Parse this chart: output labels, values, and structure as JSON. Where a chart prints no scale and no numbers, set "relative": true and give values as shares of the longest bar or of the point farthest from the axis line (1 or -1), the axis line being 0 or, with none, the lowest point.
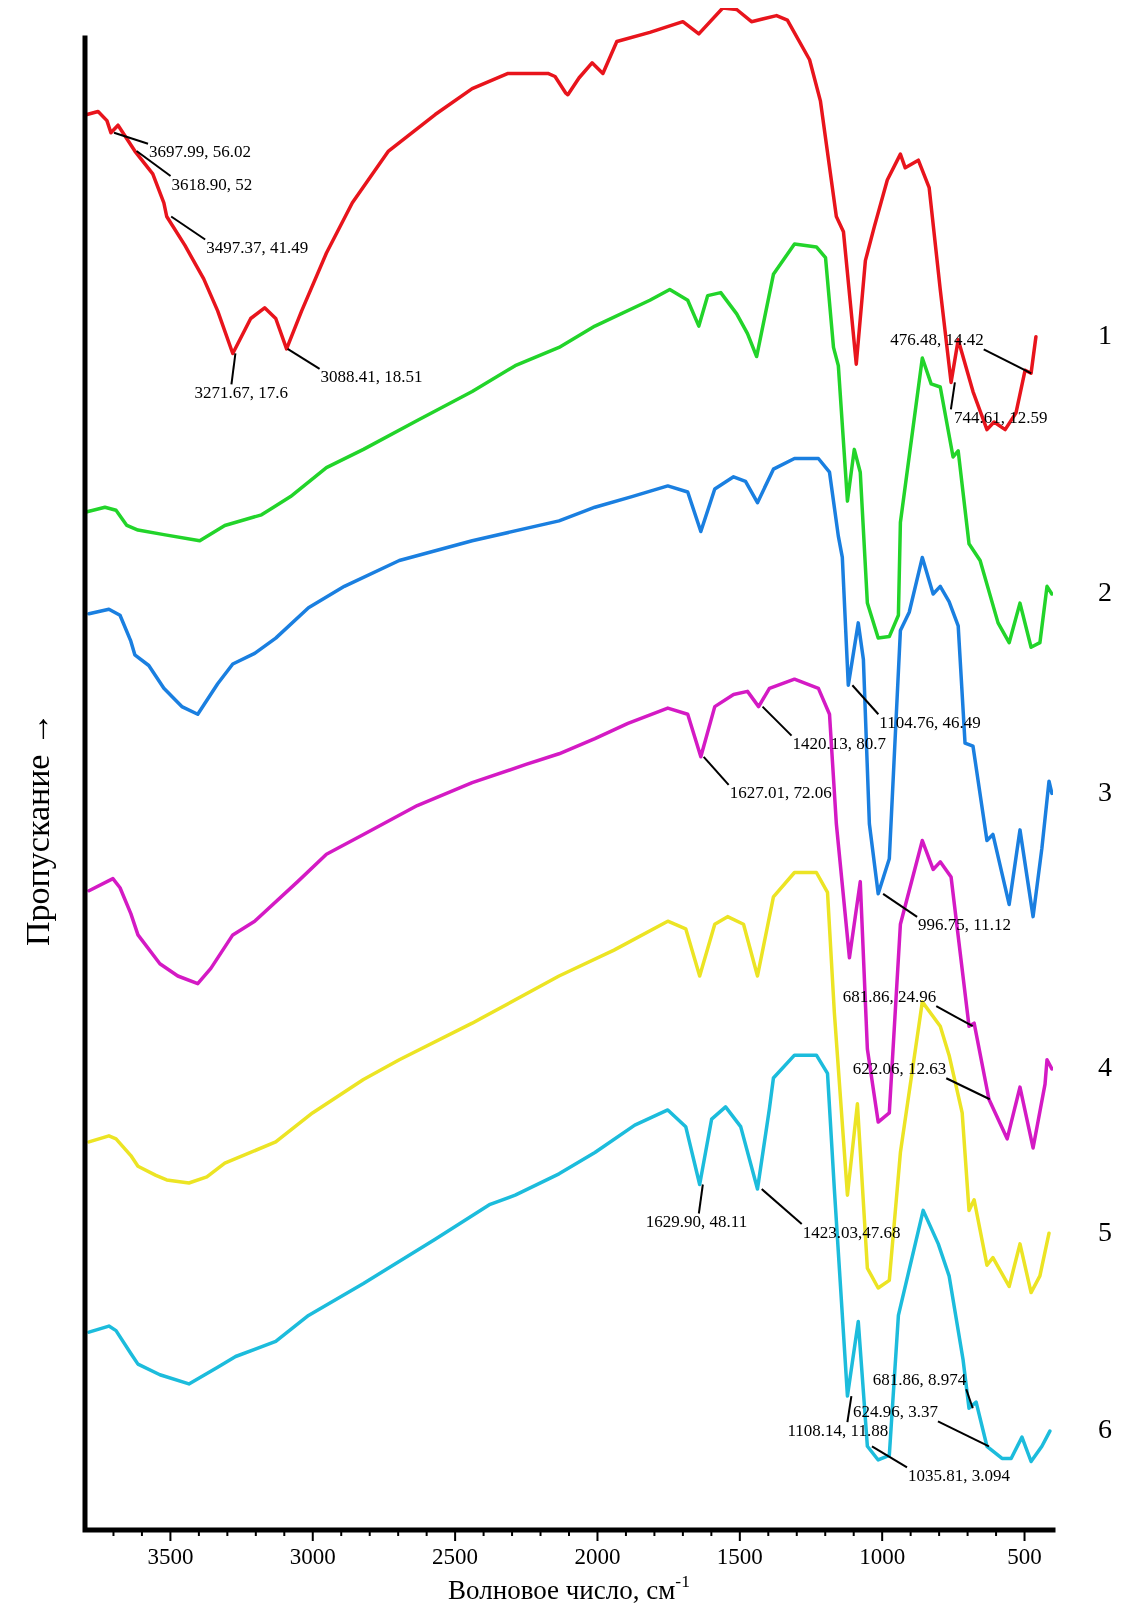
{
  "chart_data": {
    "type": "line",
    "xlabel": "Волновое число, см$^{-1}$",
    "ylabel": "Пропускание →",
    "relative": true,
    "xlim": [
      3800,
      400
    ],
    "xticks": [
      {
        "value": 3700,
        "label": null
      },
      {
        "value": 3600,
        "label": null
      },
      3500,
      {
        "value": 3400,
        "label": null
      },
      {
        "value": 3300,
        "label": null
      },
      {
        "value": 3200,
        "label": null
      },
      {
        "value": 3100,
        "label": null
      },
      3000,
      {
        "value": 2900,
        "label": null
      },
      {
        "value": 2800,
        "label": null
      },
      {
        "value": 2700,
        "label": null
      },
      {
        "value": 2600,
        "label": null
      },
      2500,
      {
        "value": 2400,
        "label": null
      },
      {
        "value": 2300,
        "label": null
      },
      {
        "value": 2200,
        "label": null
      },
      {
        "value": 2100,
        "label": null
      },
      2000,
      {
        "value": 1900,
        "label": null
      },
      {
        "value": 1800,
        "label": null
      },
      {
        "value": 1700,
        "label": null
      },
      {
        "value": 1600,
        "label": null
      },
      1500,
      {
        "value": 1400,
        "label": null
      },
      {
        "value": 1300,
        "label": null
      },
      {
        "value": 1200,
        "label": null
      },
      {
        "value": 1100,
        "label": null
      },
      1000,
      {
        "value": 900,
        "label": null
      },
      {
        "value": 800,
        "label": null
      },
      {
        "value": 700,
        "label": null
      },
      {
        "value": 600,
        "label": null
      },
      500
    ],
    "legend": false,
    "marker": "none",
    "line_style": "solid",
    "annotations": [
      {
        "text": "3697.99, 56.02",
        "x": 3697.99,
        "y": 0.918
      },
      {
        "text": "3618.90, 52",
        "x": 3618.9,
        "y": 0.906
      },
      {
        "text": "3497.37, 41.49",
        "x": 3497.37,
        "y": 0.863
      },
      {
        "text": "3271.67, 17.6",
        "x": 3271.67,
        "y": 0.773
      },
      {
        "text": "3088.41, 18.51",
        "x": 3088.41,
        "y": 0.776
      },
      {
        "text": "476.48, 14.42",
        "x": 476.48,
        "y": 0.76
      },
      {
        "text": "744.61, 12.59",
        "x": 744.61,
        "y": 0.754
      },
      {
        "text": "1104.76, 46.49",
        "x": 1104.76,
        "y": 0.555
      },
      {
        "text": "1420.13, 80.7",
        "x": 1420.13,
        "y": 0.541
      },
      {
        "text": "1627.01, 72.06",
        "x": 1627.01,
        "y": 0.508
      },
      {
        "text": "996.75, 11.12",
        "x": 996.75,
        "y": 0.418
      },
      {
        "text": "681.86, 24.96",
        "x": 681.86,
        "y": 0.331
      },
      {
        "text": "622.06, 12.63",
        "x": 622.06,
        "y": 0.283
      },
      {
        "text": "1629.90, 48.11",
        "x": 1629.9,
        "y": 0.227
      },
      {
        "text": "1423.03,47.68",
        "x": 1423.03,
        "y": 0.224
      },
      {
        "text": "1108.14, 11.88",
        "x": 1108.14,
        "y": 0.088
      },
      {
        "text": "681.86, 8.974",
        "x": 681.86,
        "y": 0.08
      },
      {
        "text": "624.96, 3.37",
        "x": 624.96,
        "y": 0.055
      },
      {
        "text": "1035.81, 3.094",
        "x": 1035.81,
        "y": 0.055
      }
    ],
    "series": [
      {
        "name": "1",
        "color": "#e8141c",
        "x": [
          3793,
          3754,
          3723,
          3709,
          3684,
          3625,
          3562,
          3523,
          3513,
          3449,
          3383,
          3334,
          3281,
          3218,
          3169,
          3130,
          3092,
          3039,
          2952,
          2861,
          2734,
          2570,
          2440,
          2314,
          2174,
          2149,
          2111,
          2104,
          2065,
          2019,
          1981,
          1932,
          1816,
          1700,
          1644,
          1560,
          1511,
          1459,
          1371,
          1333,
          1255,
          1217,
          1161,
          1136,
          1091,
          1059,
          1028,
          982,
          936,
          919,
          873,
          835,
          796,
          758,
          733,
          681,
          632,
          607,
          568,
          530,
          498,
          477,
          460
        ],
        "values": [
          0.93,
          0.932,
          0.926,
          0.918,
          0.923,
          0.906,
          0.891,
          0.872,
          0.863,
          0.844,
          0.822,
          0.801,
          0.773,
          0.796,
          0.803,
          0.796,
          0.776,
          0.801,
          0.839,
          0.872,
          0.906,
          0.93,
          0.947,
          0.957,
          0.957,
          0.955,
          0.944,
          0.943,
          0.954,
          0.964,
          0.957,
          0.978,
          0.984,
          0.991,
          0.983,
          1.0,
          0.999,
          0.991,
          0.995,
          0.992,
          0.966,
          0.939,
          0.863,
          0.853,
          0.766,
          0.834,
          0.856,
          0.887,
          0.904,
          0.895,
          0.9,
          0.882,
          0.815,
          0.754,
          0.782,
          0.748,
          0.723,
          0.728,
          0.723,
          0.734,
          0.762,
          0.76,
          0.784
        ]
      },
      {
        "name": "2",
        "color": "#22d42a",
        "x": [
          3793,
          3730,
          3691,
          3653,
          3614,
          3523,
          3397,
          3309,
          3180,
          3078,
          2952,
          2822,
          2633,
          2440,
          2289,
          2135,
          2009,
          1816,
          1746,
          1683,
          1644,
          1613,
          1567,
          1511,
          1473,
          1441,
          1382,
          1308,
          1231,
          1199,
          1171,
          1154,
          1122,
          1098,
          1077,
          1052,
          1014,
          975,
          943,
          936,
          859,
          828,
          796,
          751,
          733,
          695,
          656,
          593,
          554,
          516,
          477,
          446,
          421,
          404
        ],
        "values": [
          0.669,
          0.672,
          0.67,
          0.66,
          0.657,
          0.654,
          0.65,
          0.66,
          0.667,
          0.679,
          0.698,
          0.71,
          0.729,
          0.748,
          0.765,
          0.777,
          0.791,
          0.808,
          0.815,
          0.808,
          0.791,
          0.811,
          0.813,
          0.799,
          0.786,
          0.771,
          0.825,
          0.845,
          0.843,
          0.836,
          0.777,
          0.765,
          0.676,
          0.71,
          0.695,
          0.609,
          0.586,
          0.587,
          0.601,
          0.662,
          0.77,
          0.753,
          0.751,
          0.705,
          0.709,
          0.648,
          0.637,
          0.596,
          0.583,
          0.609,
          0.58,
          0.583,
          0.62,
          0.615
        ]
      },
      {
        "name": "3",
        "color": "#1a7fe0",
        "x": [
          3786,
          3716,
          3677,
          3639,
          3625,
          3576,
          3523,
          3460,
          3404,
          3334,
          3281,
          3204,
          3130,
          3015,
          2889,
          2696,
          2440,
          2135,
          2009,
          1879,
          1753,
          1683,
          1637,
          1588,
          1522,
          1480,
          1438,
          1382,
          1308,
          1224,
          1185,
          1154,
          1140,
          1119,
          1084,
          1066,
          1045,
          1014,
          975,
          936,
          905,
          859,
          821,
          796,
          765,
          733,
          709,
          681,
          632,
          611,
          554,
          516,
          470,
          439,
          414,
          404
        ],
        "values": [
          0.602,
          0.605,
          0.601,
          0.584,
          0.575,
          0.568,
          0.553,
          0.541,
          0.536,
          0.556,
          0.569,
          0.576,
          0.586,
          0.606,
          0.62,
          0.637,
          0.65,
          0.663,
          0.672,
          0.679,
          0.686,
          0.682,
          0.656,
          0.684,
          0.692,
          0.689,
          0.675,
          0.697,
          0.704,
          0.704,
          0.695,
          0.653,
          0.639,
          0.555,
          0.596,
          0.572,
          0.464,
          0.418,
          0.441,
          0.591,
          0.603,
          0.639,
          0.615,
          0.62,
          0.61,
          0.594,
          0.517,
          0.515,
          0.453,
          0.457,
          0.411,
          0.46,
          0.403,
          0.448,
          0.492,
          0.484
        ]
      },
      {
        "name": "4",
        "color": "#d41ac4",
        "x": [
          3786,
          3702,
          3677,
          3639,
          3614,
          3537,
          3474,
          3404,
          3358,
          3281,
          3204,
          3053,
          2952,
          2822,
          2633,
          2440,
          2251,
          2135,
          2009,
          1893,
          1753,
          1683,
          1637,
          1588,
          1522,
          1473,
          1434,
          1396,
          1308,
          1224,
          1185,
          1161,
          1115,
          1077,
          1052,
          1014,
          975,
          936,
          859,
          821,
          796,
          758,
          695,
          677,
          625,
          561,
          516,
          470,
          428,
          421,
          404
        ],
        "values": [
          0.42,
          0.428,
          0.422,
          0.405,
          0.391,
          0.372,
          0.364,
          0.359,
          0.369,
          0.391,
          0.4,
          0.426,
          0.444,
          0.457,
          0.476,
          0.491,
          0.503,
          0.51,
          0.52,
          0.53,
          0.54,
          0.536,
          0.508,
          0.541,
          0.549,
          0.551,
          0.541,
          0.553,
          0.559,
          0.553,
          0.536,
          0.464,
          0.376,
          0.426,
          0.316,
          0.268,
          0.274,
          0.398,
          0.453,
          0.434,
          0.439,
          0.429,
          0.331,
          0.333,
          0.283,
          0.257,
          0.291,
          0.251,
          0.293,
          0.309,
          0.303
        ]
      },
      {
        "name": "5",
        "color": "#ece424",
        "x": [
          3786,
          3716,
          3691,
          3639,
          3614,
          3551,
          3513,
          3435,
          3372,
          3309,
          3130,
          3001,
          2822,
          2696,
          2440,
          2135,
          1942,
          1753,
          1690,
          1641,
          1588,
          1543,
          1487,
          1438,
          1382,
          1308,
          1231,
          1192,
          1168,
          1122,
          1087,
          1052,
          1014,
          975,
          936,
          859,
          796,
          765,
          719,
          695,
          677,
          632,
          611,
          554,
          516,
          477,
          446,
          414
        ],
        "values": [
          0.255,
          0.259,
          0.257,
          0.246,
          0.239,
          0.233,
          0.23,
          0.228,
          0.232,
          0.241,
          0.255,
          0.274,
          0.296,
          0.309,
          0.333,
          0.364,
          0.381,
          0.4,
          0.395,
          0.364,
          0.398,
          0.403,
          0.398,
          0.364,
          0.416,
          0.432,
          0.432,
          0.419,
          0.34,
          0.22,
          0.28,
          0.172,
          0.159,
          0.164,
          0.248,
          0.347,
          0.331,
          0.312,
          0.274,
          0.21,
          0.217,
          0.174,
          0.179,
          0.16,
          0.188,
          0.156,
          0.167,
          0.195
        ]
      },
      {
        "name": "6",
        "color": "#1cbcdc",
        "x": [
          3786,
          3716,
          3691,
          3639,
          3614,
          3537,
          3435,
          3334,
          3271,
          3130,
          3015,
          2822,
          2570,
          2377,
          2289,
          2135,
          2009,
          1869,
          1753,
          1690,
          1641,
          1599,
          1550,
          1497,
          1438,
          1396,
          1382,
          1308,
          1231,
          1192,
          1168,
          1122,
          1084,
          1052,
          1014,
          975,
          943,
          856,
          803,
          765,
          716,
          695,
          670,
          632,
          579,
          547,
          509,
          477,
          439,
          411
        ],
        "values": [
          0.13,
          0.134,
          0.131,
          0.116,
          0.109,
          0.102,
          0.096,
          0.107,
          0.114,
          0.124,
          0.141,
          0.162,
          0.191,
          0.214,
          0.22,
          0.234,
          0.248,
          0.266,
          0.276,
          0.265,
          0.227,
          0.27,
          0.278,
          0.265,
          0.224,
          0.277,
          0.297,
          0.312,
          0.312,
          0.3,
          0.224,
          0.088,
          0.137,
          0.055,
          0.046,
          0.049,
          0.141,
          0.21,
          0.188,
          0.167,
          0.112,
          0.08,
          0.084,
          0.055,
          0.047,
          0.047,
          0.061,
          0.045,
          0.055,
          0.065
        ]
      }
    ]
  }
}
